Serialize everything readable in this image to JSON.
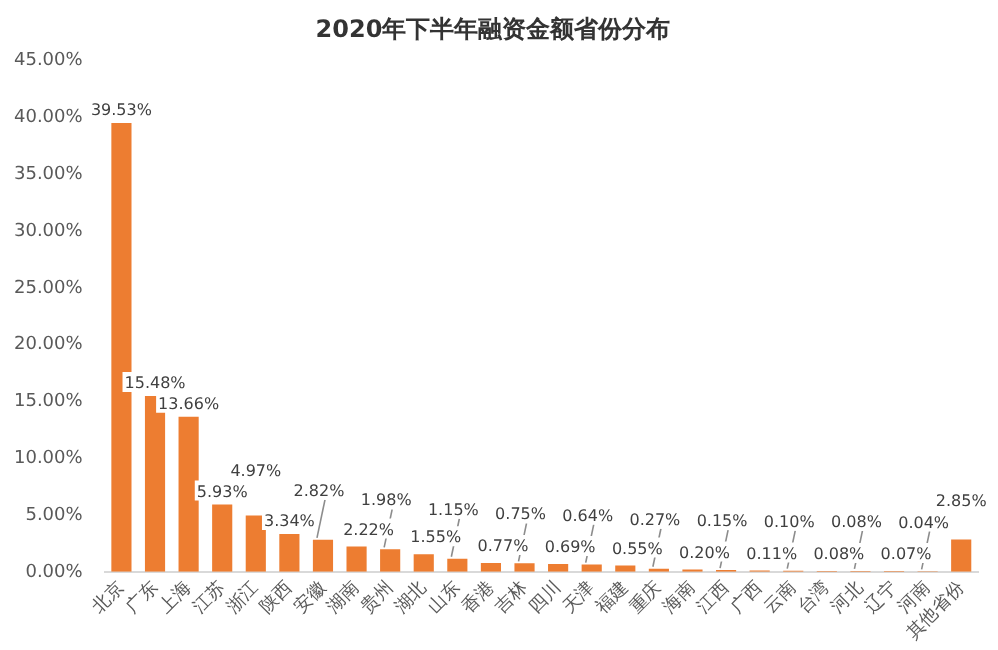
{
  "chart_data": {
    "type": "bar",
    "title": "2020年下半年融资金额省份分布",
    "categories": [
      "北京",
      "广东",
      "上海",
      "江苏",
      "浙江",
      "陕西",
      "安徽",
      "湖南",
      "贵州",
      "湖北",
      "山东",
      "香港",
      "吉林",
      "四川",
      "天津",
      "福建",
      "重庆",
      "海南",
      "江西",
      "广西",
      "云南",
      "台湾",
      "河北",
      "辽宁",
      "河南",
      "其他省份"
    ],
    "values": [
      39.53,
      15.48,
      13.66,
      5.93,
      4.97,
      3.34,
      2.82,
      2.22,
      1.98,
      1.55,
      1.15,
      0.77,
      0.75,
      0.69,
      0.64,
      0.55,
      0.27,
      0.2,
      0.15,
      0.11,
      0.1,
      0.08,
      0.08,
      0.07,
      0.04,
      2.85
    ],
    "value_labels": [
      "39.53%",
      "15.48%",
      "13.66%",
      "5.93%",
      "4.97%",
      "3.34%",
      "2.82%",
      "2.22%",
      "1.98%",
      "1.55%",
      "1.15%",
      "0.77%",
      "0.75%",
      "0.69%",
      "0.64%",
      "0.55%",
      "0.27%",
      "0.20%",
      "0.15%",
      "0.11%",
      "0.10%",
      "0.08%",
      "0.08%",
      "0.07%",
      "0.04%",
      "2.85%"
    ],
    "color": "#ed7d31",
    "ylim": [
      0,
      45
    ],
    "yticks": [
      {
        "value": 0,
        "label": "0.00%"
      },
      {
        "value": 5,
        "label": "5.00%"
      },
      {
        "value": 10,
        "label": "10.00%"
      },
      {
        "value": 15,
        "label": "15.00%"
      },
      {
        "value": 20,
        "label": "20.00%"
      },
      {
        "value": 25,
        "label": "25.00%"
      },
      {
        "value": 30,
        "label": "30.00%"
      },
      {
        "value": 35,
        "label": "35.00%"
      },
      {
        "value": 40,
        "label": "40.00%"
      },
      {
        "value": 45,
        "label": "45.00%"
      }
    ],
    "grid": false,
    "legend": false
  }
}
